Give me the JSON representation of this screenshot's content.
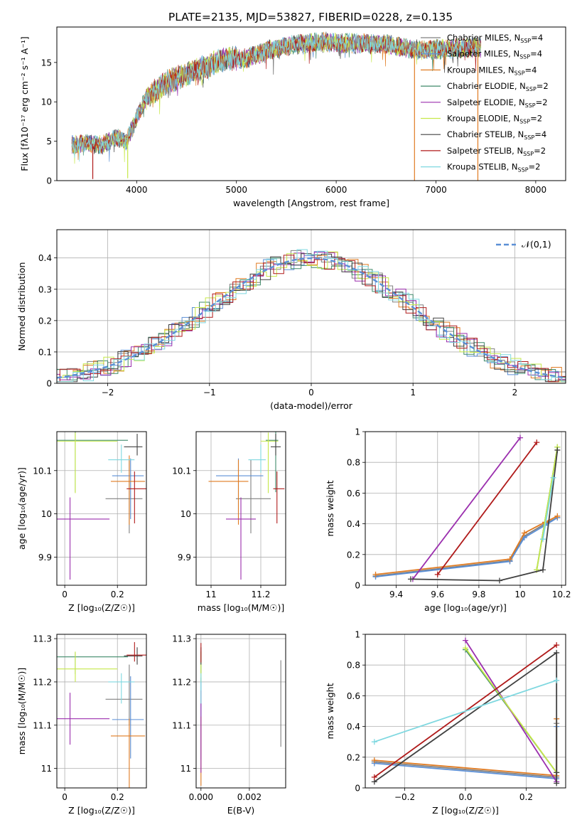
{
  "figure_title": "PLATE=2135, MJD=53827, FIBERID=0228, z=0.135",
  "models": [
    {
      "name": "Chabrier MILES",
      "nssp": "4",
      "color": "#808080"
    },
    {
      "name": "Salpeter MILES",
      "nssp": "4",
      "color": "#5b8fd6"
    },
    {
      "name": "Kroupa MILES",
      "nssp": "4",
      "color": "#e07b22"
    },
    {
      "name": "Chabrier ELODIE",
      "nssp": "2",
      "color": "#3f8a6a"
    },
    {
      "name": "Salpeter ELODIE",
      "nssp": "2",
      "color": "#9b2fae"
    },
    {
      "name": "Kroupa ELODIE",
      "nssp": "2",
      "color": "#c6e84a"
    },
    {
      "name": "Chabrier STELIB",
      "nssp": "4",
      "color": "#404040"
    },
    {
      "name": "Salpeter STELIB",
      "nssp": "2",
      "color": "#b01a1a"
    },
    {
      "name": "Kroupa STELIB",
      "nssp": "2",
      "color": "#7fd8e0"
    }
  ],
  "legend_nssp_prefix": "N",
  "legend_nssp_sub": "SSP",
  "chart_data": [
    {
      "id": "spectrum",
      "type": "line",
      "xlabel": "wavelength [Angstrom, rest frame]",
      "ylabel": "Flux [fλ10⁻¹⁷ erg cm⁻² s⁻¹ A⁻¹]",
      "xlim": [
        3200,
        8300
      ],
      "ylim": [
        0,
        19.5
      ],
      "xticks": [
        4000,
        5000,
        6000,
        7000,
        8000
      ],
      "yticks": [
        0,
        5,
        10,
        15
      ],
      "grid": false,
      "legend": "top-right",
      "continuum": {
        "x": [
          3350,
          3500,
          3650,
          3800,
          3900,
          4000,
          4100,
          4300,
          4500,
          4700,
          4900,
          5100,
          5300,
          5600,
          5900,
          6200,
          6500,
          6800,
          7100,
          7400,
          7450
        ],
        "y": [
          4.5,
          4.8,
          4.5,
          5.5,
          5.0,
          8.0,
          10.5,
          12.5,
          13.5,
          14.5,
          15.5,
          15.5,
          16.5,
          17.3,
          17.6,
          17.4,
          17.3,
          16.6,
          16.7,
          16.9,
          16.9
        ]
      },
      "spikes": [
        {
          "x": 3560,
          "y": 0.2,
          "series": 7
        },
        {
          "x": 3910,
          "y": 0.3,
          "series": 5
        },
        {
          "x": 6785,
          "y": 0,
          "series": 2
        },
        {
          "x": 7420,
          "y": 0,
          "series": 2
        }
      ]
    },
    {
      "id": "residuals",
      "type": "histogram",
      "xlabel": "(data-model)/error",
      "ylabel": "Normed distribution",
      "xlim": [
        -2.5,
        2.5
      ],
      "ylim": [
        0,
        0.49
      ],
      "xticks": [
        -2,
        -1,
        0,
        1,
        2
      ],
      "yticks": [
        0.0,
        0.1,
        0.2,
        0.3,
        0.4
      ],
      "grid": true,
      "legend": "top-right",
      "reference_label": "𝒩(0,1)",
      "reference_curve": {
        "type": "gaussian",
        "mean": 0,
        "sigma": 1
      },
      "bin_width": 0.1
    },
    {
      "id": "age_vs_Z",
      "type": "errorbar",
      "xlabel": "Z [log₁₀(Z/Z☉)]",
      "ylabel": "age  [log₁₀(age/yr)]",
      "xlim": [
        -0.03,
        0.31
      ],
      "ylim": [
        9.835,
        10.19
      ],
      "xticks": [
        0.0,
        0.2
      ],
      "yticks": [
        9.9,
        10.0,
        10.1
      ],
      "grid": true,
      "points": [
        {
          "series": 0,
          "x": 0.245,
          "xerr": [
            0.09,
            0.05
          ],
          "y": 10.035,
          "yerr": [
            0.08,
            0.09
          ]
        },
        {
          "series": 1,
          "x": 0.25,
          "xerr": [
            0.07,
            0.05
          ],
          "y": 10.088,
          "yerr": [
            0.1,
            0.04
          ]
        },
        {
          "series": 2,
          "x": 0.245,
          "xerr": [
            0.07,
            0.06
          ],
          "y": 10.075,
          "yerr": [
            0.1,
            0.06
          ]
        },
        {
          "series": 3,
          "x": 0.04,
          "xerr": [
            0.13,
            0.2
          ],
          "y": 10.17,
          "yerr": [
            0.12,
            0.02
          ]
        },
        {
          "series": 4,
          "x": 0.02,
          "xerr": [
            0.12,
            0.15
          ],
          "y": 9.988,
          "yerr": [
            0.14,
            0.05
          ]
        },
        {
          "series": 5,
          "x": 0.04,
          "xerr": [
            0.13,
            0.16
          ],
          "y": 10.168,
          "yerr": [
            0.12,
            0.02
          ]
        },
        {
          "series": 6,
          "x": 0.275,
          "xerr": [
            0.05,
            0.02
          ],
          "y": 10.155,
          "yerr": [
            0.02,
            0.03
          ]
        },
        {
          "series": 7,
          "x": 0.265,
          "xerr": [
            0.03,
            0.05
          ],
          "y": 10.058,
          "yerr": [
            0.08,
            0.04
          ]
        },
        {
          "series": 8,
          "x": 0.215,
          "xerr": [
            0.05,
            0.05
          ],
          "y": 10.125,
          "yerr": [
            0.03,
            0.035
          ]
        }
      ]
    },
    {
      "id": "age_vs_mass",
      "type": "errorbar",
      "xlabel": "mass [log₁₀(M/M☉)]",
      "ylabel": "",
      "xlim": [
        10.94,
        11.3
      ],
      "ylim": [
        9.835,
        10.19
      ],
      "xticks": [
        11.0,
        11.2
      ],
      "yticks": [
        9.9,
        10.0,
        10.1
      ],
      "grid": true,
      "points": [
        {
          "series": 0,
          "x": 11.16,
          "xerr": [
            0.06,
            0.08
          ],
          "y": 10.035,
          "yerr": [
            0.08,
            0.09
          ]
        },
        {
          "series": 1,
          "x": 11.11,
          "xerr": [
            0.09,
            0.1
          ],
          "y": 10.088,
          "yerr": [
            0.1,
            0.04
          ]
        },
        {
          "series": 2,
          "x": 11.11,
          "xerr": [
            0.12,
            0.04
          ],
          "y": 10.075,
          "yerr": [
            0.1,
            0.05
          ]
        },
        {
          "series": 3,
          "x": 11.26,
          "xerr": [
            0.04,
            0.01
          ],
          "y": 10.17,
          "yerr": [
            0.12,
            0.02
          ]
        },
        {
          "series": 4,
          "x": 11.12,
          "xerr": [
            0.06,
            0.06
          ],
          "y": 9.988,
          "yerr": [
            0.14,
            0.05
          ]
        },
        {
          "series": 5,
          "x": 11.23,
          "xerr": [
            0.03,
            0.04
          ],
          "y": 10.168,
          "yerr": [
            0.12,
            0.02
          ]
        },
        {
          "series": 6,
          "x": 11.26,
          "xerr": [
            0.02,
            0.02
          ],
          "y": 10.155,
          "yerr": [
            0.02,
            0.03
          ]
        },
        {
          "series": 7,
          "x": 11.265,
          "xerr": [
            0.015,
            0.03
          ],
          "y": 10.058,
          "yerr": [
            0.08,
            0.04
          ]
        },
        {
          "series": 8,
          "x": 11.2,
          "xerr": [
            0.05,
            0.02
          ],
          "y": 10.125,
          "yerr": [
            0.03,
            0.035
          ]
        }
      ]
    },
    {
      "id": "weight_vs_age",
      "type": "line",
      "xlabel": "age  [log₁₀(age/yr)]",
      "ylabel": "mass weight",
      "xlim": [
        9.25,
        10.22
      ],
      "ylim": [
        0,
        1.0
      ],
      "xticks": [
        9.4,
        9.6,
        9.8,
        10.0,
        10.2
      ],
      "yticks": [
        0.0,
        0.2,
        0.4,
        0.6,
        0.8,
        1.0
      ],
      "grid": true,
      "series": [
        {
          "series": 0,
          "x": [
            9.3,
            9.95,
            10.02,
            10.12,
            10.18
          ],
          "y": [
            0.06,
            0.16,
            0.32,
            0.4,
            0.44
          ]
        },
        {
          "series": 1,
          "x": [
            9.3,
            9.95,
            10.02,
            10.12,
            10.18
          ],
          "y": [
            0.055,
            0.155,
            0.31,
            0.39,
            0.44
          ]
        },
        {
          "series": 2,
          "x": [
            9.3,
            9.95,
            10.02,
            10.12,
            10.18
          ],
          "y": [
            0.07,
            0.17,
            0.34,
            0.41,
            0.45
          ]
        },
        {
          "series": 3,
          "x": [
            10.08,
            10.18
          ],
          "y": [
            0.1,
            0.9
          ]
        },
        {
          "series": 4,
          "x": [
            9.48,
            10.0
          ],
          "y": [
            0.04,
            0.96
          ]
        },
        {
          "series": 5,
          "x": [
            10.08,
            10.18
          ],
          "y": [
            0.1,
            0.9
          ]
        },
        {
          "series": 6,
          "x": [
            9.47,
            9.9,
            10.11,
            10.18
          ],
          "y": [
            0.04,
            0.03,
            0.1,
            0.88
          ]
        },
        {
          "series": 7,
          "x": [
            9.6,
            10.08
          ],
          "y": [
            0.07,
            0.93
          ]
        },
        {
          "series": 8,
          "x": [
            10.11,
            10.16
          ],
          "y": [
            0.3,
            0.7
          ]
        }
      ]
    },
    {
      "id": "mass_vs_Z",
      "type": "errorbar",
      "xlabel": "Z [log₁₀(Z/Z☉)]",
      "ylabel": "mass [log₁₀(M/M☉)]",
      "xlim": [
        -0.03,
        0.31
      ],
      "ylim": [
        10.955,
        11.31
      ],
      "xticks": [
        0.0,
        0.2
      ],
      "yticks": [
        11.0,
        11.1,
        11.2,
        11.3
      ],
      "grid": true,
      "points": [
        {
          "series": 0,
          "x": 0.245,
          "xerr": [
            0.09,
            0.05
          ],
          "y": 11.16,
          "yerr": [
            0.06,
            0.08
          ]
        },
        {
          "series": 1,
          "x": 0.25,
          "xerr": [
            0.07,
            0.05
          ],
          "y": 11.113,
          "yerr": [
            0.09,
            0.1
          ]
        },
        {
          "series": 2,
          "x": 0.245,
          "xerr": [
            0.07,
            0.06
          ],
          "y": 11.075,
          "yerr": [
            0.12,
            0.04
          ]
        },
        {
          "series": 3,
          "x": 0.04,
          "xerr": [
            0.13,
            0.2
          ],
          "y": 11.258,
          "yerr": [
            0.04,
            0.01
          ]
        },
        {
          "series": 4,
          "x": 0.02,
          "xerr": [
            0.12,
            0.15
          ],
          "y": 11.115,
          "yerr": [
            0.06,
            0.06
          ]
        },
        {
          "series": 5,
          "x": 0.04,
          "xerr": [
            0.13,
            0.16
          ],
          "y": 11.23,
          "yerr": [
            0.03,
            0.04
          ]
        },
        {
          "series": 6,
          "x": 0.275,
          "xerr": [
            0.05,
            0.02
          ],
          "y": 11.26,
          "yerr": [
            0.02,
            0.02
          ]
        },
        {
          "series": 7,
          "x": 0.265,
          "xerr": [
            0.03,
            0.05
          ],
          "y": 11.262,
          "yerr": [
            0.015,
            0.03
          ]
        },
        {
          "series": 8,
          "x": 0.215,
          "xerr": [
            0.05,
            0.05
          ],
          "y": 11.2,
          "yerr": [
            0.05,
            0.02
          ]
        }
      ]
    },
    {
      "id": "mass_vs_ebv",
      "type": "errorbar",
      "xlabel": "E(B-V)",
      "ylabel": "",
      "xlim": [
        -0.0002,
        0.0035
      ],
      "ylim": [
        10.955,
        11.31
      ],
      "xticks": [
        0.0,
        0.002
      ],
      "xtick_labels": [
        "0.000",
        "0.002"
      ],
      "yticks": [
        11.0,
        11.1,
        11.2,
        11.3
      ],
      "grid": true,
      "points": [
        {
          "series": 0,
          "x": 0.0033,
          "xerr": [
            0,
            0
          ],
          "y": 11.15,
          "yerr": [
            0.1,
            0.1
          ]
        },
        {
          "series": 1,
          "x": 0.0,
          "xerr": [
            0,
            0
          ],
          "y": 11.11,
          "yerr": [
            0.09,
            0.1
          ]
        },
        {
          "series": 2,
          "x": 0.0,
          "xerr": [
            0,
            0
          ],
          "y": 11.08,
          "yerr": [
            0.12,
            0.04
          ]
        },
        {
          "series": 3,
          "x": 0.0,
          "xerr": [
            0,
            0
          ],
          "y": 11.26,
          "yerr": [
            0.04,
            0.01
          ]
        },
        {
          "series": 4,
          "x": 0.0,
          "xerr": [
            0,
            0
          ],
          "y": 11.1,
          "yerr": [
            0.11,
            0.08
          ]
        },
        {
          "series": 5,
          "x": 0.0,
          "xerr": [
            0,
            0
          ],
          "y": 11.23,
          "yerr": [
            0.03,
            0.04
          ]
        },
        {
          "series": 6,
          "x": 0.0,
          "xerr": [
            0,
            0
          ],
          "y": 11.26,
          "yerr": [
            0.02,
            0.02
          ]
        },
        {
          "series": 7,
          "x": 0.0,
          "xerr": [
            0,
            0
          ],
          "y": 11.26,
          "yerr": [
            0.015,
            0.03
          ]
        },
        {
          "series": 8,
          "x": 0.0,
          "xerr": [
            0,
            0
          ],
          "y": 11.2,
          "yerr": [
            0.05,
            0.02
          ]
        }
      ]
    },
    {
      "id": "weight_vs_Z",
      "type": "line",
      "xlabel": "Z [log₁₀(Z/Z☉)]",
      "ylabel": "mass weight",
      "xlim": [
        -0.33,
        0.33
      ],
      "ylim": [
        0,
        1.0
      ],
      "xticks": [
        -0.2,
        0.0,
        0.2
      ],
      "xtick_labels": [
        "−0.2",
        "0.0",
        "0.2"
      ],
      "yticks": [
        0.0,
        0.2,
        0.4,
        0.6,
        0.8,
        1.0
      ],
      "grid": true,
      "series": [
        {
          "series": 0,
          "x": [
            -0.3,
            0.3,
            0.3
          ],
          "y": [
            0.17,
            0.07,
            0.42
          ]
        },
        {
          "series": 1,
          "x": [
            -0.3,
            0.3,
            0.3
          ],
          "y": [
            0.16,
            0.06,
            0.4
          ]
        },
        {
          "series": 2,
          "x": [
            -0.3,
            0.3,
            0.3
          ],
          "y": [
            0.18,
            0.08,
            0.45
          ]
        },
        {
          "series": 3,
          "x": [
            0.0,
            0.3
          ],
          "y": [
            0.9,
            0.1
          ]
        },
        {
          "series": 4,
          "x": [
            0.0,
            0.3
          ],
          "y": [
            0.96,
            0.04
          ]
        },
        {
          "series": 5,
          "x": [
            0.0,
            0.3
          ],
          "y": [
            0.91,
            0.1
          ]
        },
        {
          "series": 6,
          "x": [
            -0.3,
            0.3,
            0.3,
            0.3
          ],
          "y": [
            0.04,
            0.88,
            0.1,
            0.03
          ]
        },
        {
          "series": 7,
          "x": [
            -0.3,
            0.3
          ],
          "y": [
            0.07,
            0.93
          ]
        },
        {
          "series": 8,
          "x": [
            -0.3,
            0.3
          ],
          "y": [
            0.3,
            0.7
          ]
        }
      ]
    }
  ]
}
